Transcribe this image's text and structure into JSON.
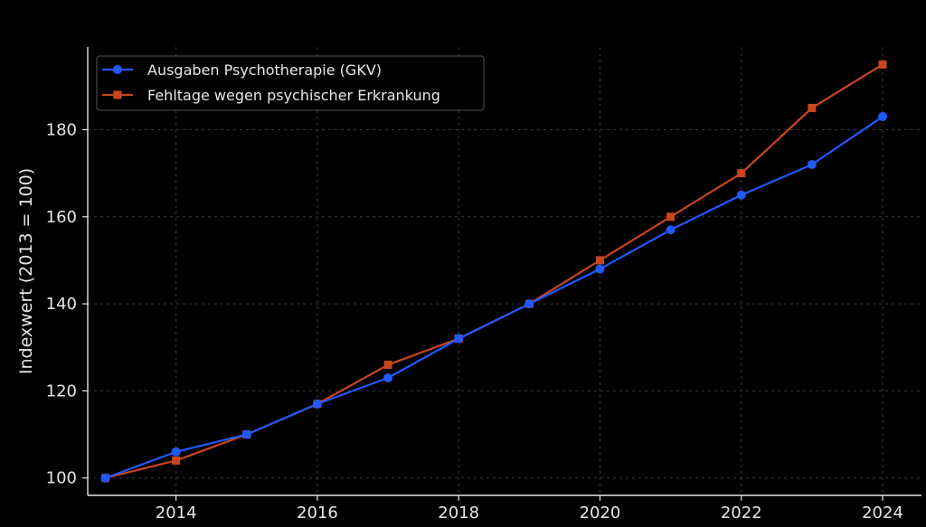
{
  "chart_data": {
    "type": "line",
    "title": "",
    "xlabel": "",
    "ylabel": "Indexwert (2013 = 100)",
    "x": [
      2013,
      2014,
      2015,
      2016,
      2017,
      2018,
      2019,
      2020,
      2021,
      2022,
      2023,
      2024
    ],
    "xlim": [
      2012.75,
      2024.55
    ],
    "ylim": [
      96,
      199
    ],
    "x_ticks": [
      2014,
      2016,
      2018,
      2020,
      2022,
      2024
    ],
    "y_ticks": [
      100,
      120,
      140,
      160,
      180
    ],
    "grid": true,
    "legend_position": "top-left",
    "series": [
      {
        "name": "Ausgaben Psychotherapie (GKV)",
        "color": "#2158ff",
        "marker": "circle",
        "values": [
          100,
          106,
          110,
          117,
          123,
          132,
          140,
          148,
          157,
          165,
          172,
          183
        ]
      },
      {
        "name": "Fehltage wegen psychischer Erkrankung",
        "color": "#c8461e",
        "marker": "square",
        "values": [
          100,
          104,
          110,
          117,
          126,
          132,
          140,
          150,
          160,
          170,
          185,
          195
        ]
      }
    ]
  }
}
